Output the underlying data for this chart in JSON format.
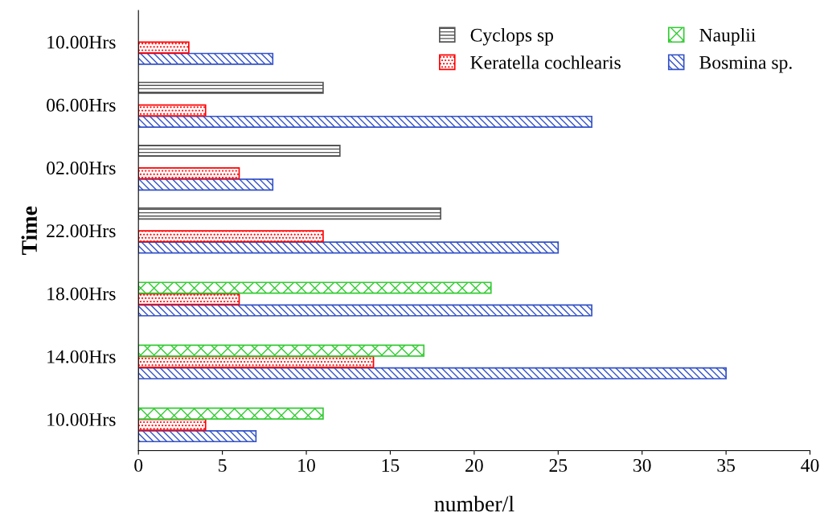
{
  "chart_data": {
    "type": "bar",
    "orientation": "horizontal",
    "xlabel": "number/l",
    "ylabel": "Time",
    "categories": [
      "10.00Hrs",
      "06.00Hrs",
      "02.00Hrs",
      "22.00Hrs",
      "18.00Hrs",
      "14.00Hrs",
      "10.00Hrs"
    ],
    "series": [
      {
        "name": "Bosmina sp.",
        "color": "#3352c8",
        "values": [
          8,
          27,
          8,
          25,
          27,
          35,
          7
        ]
      },
      {
        "name": "Keratella cochlearis",
        "color": "#ff0000",
        "values": [
          3,
          4,
          6,
          11,
          6,
          14,
          4
        ]
      },
      {
        "name": "Nauplii",
        "color": "#33cc33",
        "values": [
          null,
          null,
          null,
          null,
          21,
          17,
          11
        ]
      },
      {
        "name": "Cyclops sp",
        "color": "#555555",
        "values": [
          null,
          11,
          12,
          18,
          null,
          null,
          null
        ]
      }
    ],
    "xlim": [
      0,
      40
    ],
    "xticks": [
      0,
      5,
      10,
      15,
      20,
      25,
      30,
      35,
      40
    ],
    "grid": false,
    "legend": "top right"
  }
}
